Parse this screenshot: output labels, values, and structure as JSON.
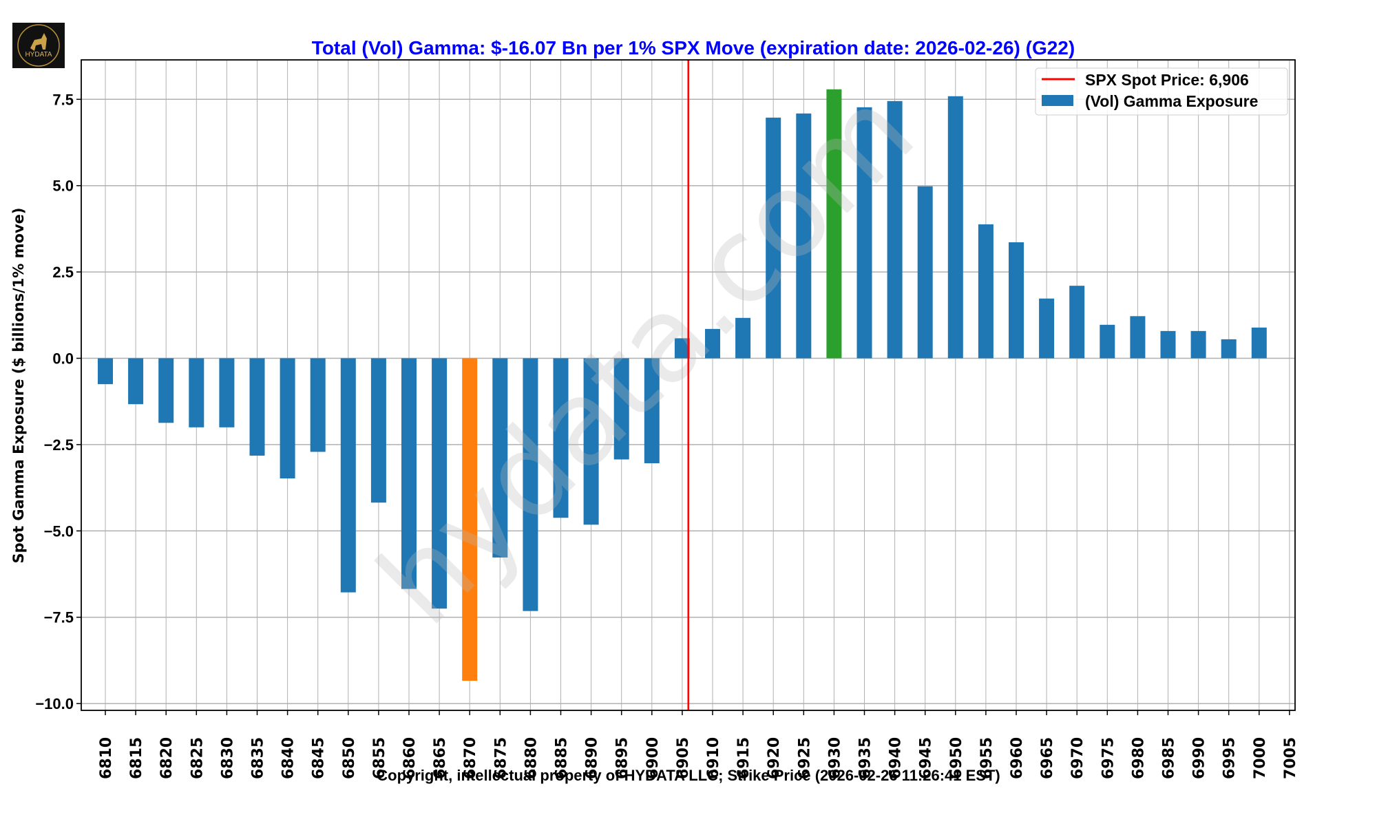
{
  "chart_data": {
    "type": "bar",
    "title": "Total (Vol) Gamma: $-16.07 Bn per 1% SPX Move (expiration date: 2026-02-26) (G22)",
    "xlabel": "Copyright, intellectual property of HYDATA LLC; Strike Price (2026-02-26 11:26:41 EST)",
    "ylabel": "Spot Gamma Exposure ($ billions/1% move)",
    "ylim": [
      -10.2,
      8.6
    ],
    "yticks": [
      -10.0,
      -7.5,
      -5.0,
      -2.5,
      0.0,
      2.5,
      5.0,
      7.5
    ],
    "ytick_labels": [
      "−10.0",
      "−7.5",
      "−5.0",
      "−2.5",
      "0.0",
      "2.5",
      "5.0",
      "7.5"
    ],
    "grid": true,
    "legend_placement": "top-right",
    "categories": [
      "6810",
      "6815",
      "6820",
      "6825",
      "6830",
      "6835",
      "6840",
      "6845",
      "6850",
      "6855",
      "6860",
      "6865",
      "6870",
      "6875",
      "6880",
      "6885",
      "6890",
      "6895",
      "6900",
      "6905",
      "6910",
      "6915",
      "6920",
      "6925",
      "6930",
      "6935",
      "6940",
      "6945",
      "6950",
      "6955",
      "6960",
      "6965",
      "6970",
      "6975",
      "6980",
      "6985",
      "6990",
      "6995",
      "7000",
      "7005"
    ],
    "series": [
      {
        "name": "(Vol) Gamma Exposure",
        "color": "#1f77b4",
        "values": [
          -0.75,
          -1.33,
          -1.87,
          -2.0,
          -2.0,
          -2.82,
          -3.48,
          -2.71,
          -6.78,
          -4.18,
          -6.68,
          -7.25,
          -9.34,
          -5.77,
          -7.32,
          -4.62,
          -4.82,
          -2.93,
          -3.04,
          0.58,
          0.85,
          1.17,
          6.97,
          7.09,
          7.79,
          7.27,
          7.45,
          4.98,
          7.59,
          3.88,
          3.36,
          1.73,
          2.1,
          0.97,
          1.22,
          0.79,
          0.79,
          0.55,
          0.89,
          null
        ]
      }
    ],
    "highlights": [
      {
        "category": "6870",
        "color": "#ff7f0e"
      },
      {
        "category": "6930",
        "color": "#2ca02c"
      }
    ],
    "spot_line": {
      "name": "SPX Spot Price: 6,906",
      "value": 6906,
      "color": "#ff0000"
    },
    "title_color": "#0000ff",
    "watermark": "hydata.com"
  },
  "logo": {
    "text": "HYDATA"
  }
}
